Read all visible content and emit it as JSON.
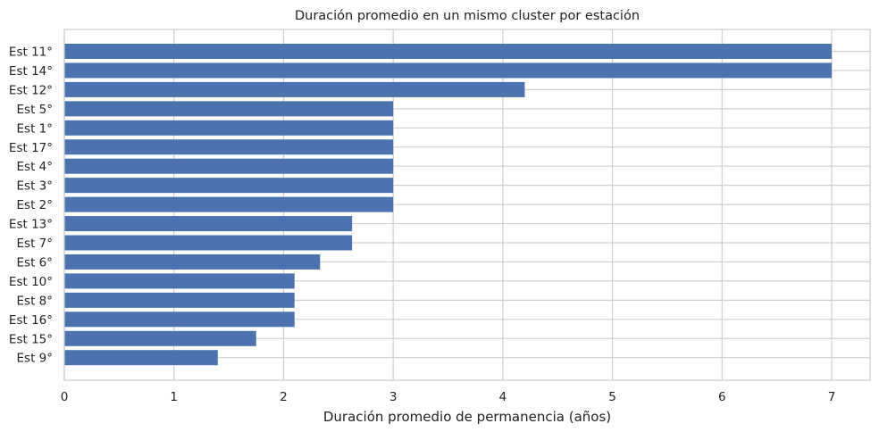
{
  "chart_data": {
    "type": "bar",
    "orientation": "horizontal",
    "title": "Duración promedio en un mismo cluster por estación",
    "xlabel": "Duración promedio de permanencia (años)",
    "ylabel": "",
    "xlim": [
      0,
      7.35
    ],
    "xticks": [
      0,
      1,
      2,
      3,
      4,
      5,
      6,
      7
    ],
    "grid": true,
    "bar_color": "#4c72b0",
    "categories": [
      "Est 11°",
      "Est 14°",
      "Est 12°",
      "Est 5°",
      "Est 1°",
      "Est 17°",
      "Est 4°",
      "Est 3°",
      "Est 2°",
      "Est 13°",
      "Est 7°",
      "Est 6°",
      "Est 10°",
      "Est 8°",
      "Est 16°",
      "Est 15°",
      "Est 9°"
    ],
    "values": [
      7.0,
      7.0,
      4.2,
      3.0,
      3.0,
      3.0,
      3.0,
      3.0,
      3.0,
      2.625,
      2.625,
      2.333,
      2.1,
      2.1,
      2.1,
      1.75,
      1.4
    ]
  }
}
